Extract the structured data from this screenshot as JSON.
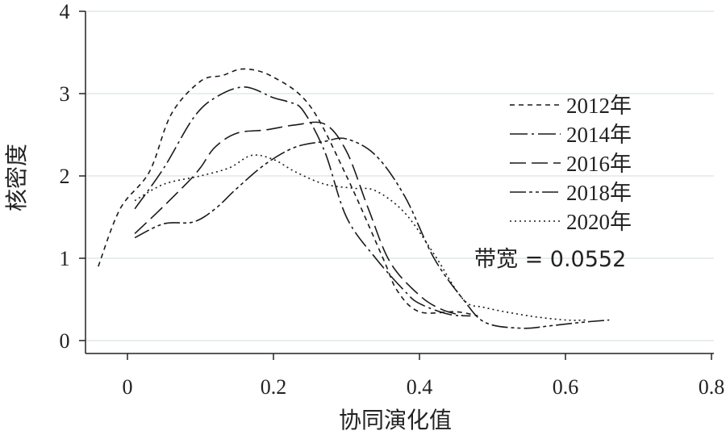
{
  "chart_data": {
    "type": "line",
    "xlabel": "协同演化值",
    "ylabel": "核密度",
    "xlim": [
      -0.05,
      0.8
    ],
    "ylim": [
      0,
      4
    ],
    "x_ticks": [
      0,
      0.2,
      0.4,
      0.6,
      0.8
    ],
    "x_tick_labels": [
      "0",
      "0.2",
      "0.4",
      "0.6",
      "0.8"
    ],
    "y_ticks": [
      0,
      1,
      2,
      3,
      4
    ],
    "y_tick_labels": [
      "0",
      "1",
      "2",
      "3",
      "4"
    ],
    "grid": "horizontal",
    "legend_position": "right",
    "annotation": "带宽 = 0.0552",
    "series": [
      {
        "name": "2012年",
        "dash": "6,5",
        "points": [
          [
            -0.04,
            0.9
          ],
          [
            -0.01,
            1.6
          ],
          [
            0.03,
            2.05
          ],
          [
            0.06,
            2.75
          ],
          [
            0.1,
            3.15
          ],
          [
            0.13,
            3.22
          ],
          [
            0.16,
            3.3
          ],
          [
            0.2,
            3.2
          ],
          [
            0.25,
            2.85
          ],
          [
            0.3,
            2.0
          ],
          [
            0.35,
            1.0
          ],
          [
            0.37,
            0.6
          ],
          [
            0.4,
            0.35
          ],
          [
            0.45,
            0.35
          ],
          [
            0.48,
            0.3
          ]
        ]
      },
      {
        "name": "2014年",
        "dash": "22,5,3,5",
        "points": [
          [
            0.01,
            1.6
          ],
          [
            0.05,
            2.1
          ],
          [
            0.09,
            2.7
          ],
          [
            0.12,
            2.95
          ],
          [
            0.16,
            3.08
          ],
          [
            0.2,
            2.95
          ],
          [
            0.22,
            2.9
          ],
          [
            0.24,
            2.8
          ],
          [
            0.27,
            2.3
          ],
          [
            0.3,
            1.5
          ],
          [
            0.34,
            1.0
          ],
          [
            0.38,
            0.6
          ],
          [
            0.4,
            0.45
          ],
          [
            0.44,
            0.32
          ],
          [
            0.47,
            0.3
          ]
        ]
      },
      {
        "name": "2016年",
        "dash": "20,7",
        "points": [
          [
            0.01,
            1.3
          ],
          [
            0.04,
            1.55
          ],
          [
            0.08,
            1.9
          ],
          [
            0.1,
            2.1
          ],
          [
            0.12,
            2.35
          ],
          [
            0.15,
            2.52
          ],
          [
            0.19,
            2.56
          ],
          [
            0.23,
            2.62
          ],
          [
            0.27,
            2.63
          ],
          [
            0.3,
            2.3
          ],
          [
            0.33,
            1.6
          ],
          [
            0.36,
            0.95
          ],
          [
            0.4,
            0.55
          ],
          [
            0.43,
            0.38
          ],
          [
            0.46,
            0.3
          ]
        ]
      },
      {
        "name": "2018年",
        "dash": "20,4,4,4,4,4",
        "points": [
          [
            0.01,
            1.25
          ],
          [
            0.05,
            1.42
          ],
          [
            0.09,
            1.44
          ],
          [
            0.12,
            1.6
          ],
          [
            0.15,
            1.85
          ],
          [
            0.19,
            2.15
          ],
          [
            0.23,
            2.35
          ],
          [
            0.27,
            2.42
          ],
          [
            0.3,
            2.45
          ],
          [
            0.34,
            2.25
          ],
          [
            0.38,
            1.75
          ],
          [
            0.42,
            1.0
          ],
          [
            0.46,
            0.5
          ],
          [
            0.49,
            0.22
          ],
          [
            0.54,
            0.15
          ],
          [
            0.58,
            0.18
          ],
          [
            0.62,
            0.22
          ],
          [
            0.66,
            0.25
          ]
        ]
      },
      {
        "name": "2020年",
        "dash": "2,4",
        "points": [
          [
            0.01,
            1.7
          ],
          [
            0.05,
            1.9
          ],
          [
            0.1,
            2.0
          ],
          [
            0.14,
            2.1
          ],
          [
            0.17,
            2.25
          ],
          [
            0.2,
            2.2
          ],
          [
            0.23,
            2.05
          ],
          [
            0.27,
            1.9
          ],
          [
            0.31,
            1.85
          ],
          [
            0.34,
            1.82
          ],
          [
            0.38,
            1.55
          ],
          [
            0.42,
            1.05
          ],
          [
            0.46,
            0.5
          ],
          [
            0.49,
            0.4
          ],
          [
            0.55,
            0.3
          ],
          [
            0.6,
            0.25
          ],
          [
            0.63,
            0.25
          ]
        ]
      }
    ]
  }
}
